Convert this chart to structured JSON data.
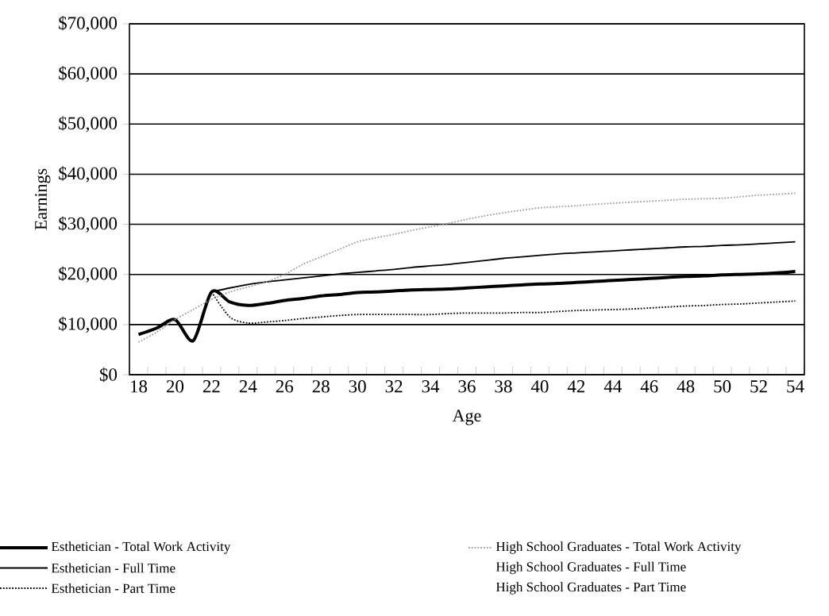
{
  "chart_data": {
    "type": "line",
    "xlabel": "Age",
    "ylabel": "Earnings",
    "categories": [
      "18",
      null,
      "20",
      null,
      "22",
      null,
      "24",
      null,
      "26",
      null,
      "28",
      null,
      "30",
      null,
      "32",
      null,
      "34",
      null,
      "36",
      null,
      "38",
      null,
      "40",
      null,
      "42",
      null,
      "44",
      null,
      "46",
      null,
      "48",
      null,
      "50",
      null,
      "52",
      null,
      "54"
    ],
    "series": [
      {
        "name": "Esthetician - Total Work Activity",
        "color": "#000000",
        "line_style": "solid",
        "values": [
          8000,
          9300,
          11000,
          6800,
          16500,
          14500,
          13800,
          14200,
          14800,
          15200,
          15700,
          16000,
          16400,
          16500,
          16700,
          16900,
          17000,
          17100,
          17300,
          17500,
          17700,
          17900,
          18100,
          18200,
          18400,
          18600,
          18800,
          19000,
          19200,
          19400,
          19600,
          19700,
          19900,
          20000,
          20100,
          20300,
          20600
        ]
      },
      {
        "name": "Esthetician - Full Time",
        "color": "#000000",
        "line_style": "solid",
        "values": [
          null,
          null,
          null,
          null,
          16500,
          17300,
          18000,
          18500,
          18900,
          19300,
          19700,
          20100,
          20400,
          20700,
          21000,
          21400,
          21700,
          22000,
          22400,
          22800,
          23200,
          23500,
          23800,
          24100,
          24300,
          24500,
          24700,
          24900,
          25100,
          25300,
          25500,
          25600,
          25800,
          25900,
          26100,
          26300,
          26500
        ]
      },
      {
        "name": "Esthetician - Part Time",
        "color": "#000000",
        "line_style": "dotted",
        "values": [
          null,
          null,
          null,
          null,
          16500,
          11500,
          10300,
          10500,
          10800,
          11200,
          11500,
          11800,
          12000,
          12000,
          12000,
          12000,
          12000,
          12200,
          12300,
          12300,
          12300,
          12400,
          12400,
          12600,
          12800,
          12900,
          13000,
          13100,
          13300,
          13500,
          13700,
          13800,
          14000,
          14100,
          14300,
          14500,
          14700
        ]
      },
      {
        "name": "High School Graduates - Total Work Activity",
        "color": "#a0a0a0",
        "line_style": "dotted",
        "values": [
          6500,
          8500,
          11000,
          13000,
          15000,
          16500,
          17500,
          18500,
          20000,
          22000,
          23500,
          25000,
          26500,
          27300,
          28000,
          28800,
          29500,
          30200,
          31000,
          31700,
          32300,
          32800,
          33300,
          33500,
          33700,
          34000,
          34200,
          34400,
          34600,
          34800,
          35000,
          35100,
          35200,
          35500,
          35800,
          36000,
          36200
        ]
      },
      {
        "name": "High School Graduates - Full Time",
        "values": [
          null,
          null,
          null,
          null,
          null,
          null,
          null,
          null,
          null,
          null,
          null,
          null,
          null,
          null,
          null,
          null,
          null,
          null,
          null,
          null,
          null,
          null,
          null,
          null,
          null,
          null,
          null,
          null,
          null,
          null,
          null,
          null,
          null,
          null,
          null,
          null,
          null
        ]
      },
      {
        "name": "High School Graduates - Part Time",
        "values": [
          null,
          null,
          null,
          null,
          null,
          null,
          null,
          null,
          null,
          null,
          null,
          null,
          null,
          null,
          null,
          null,
          null,
          null,
          null,
          null,
          null,
          null,
          null,
          null,
          null,
          null,
          null,
          null,
          null,
          null,
          null,
          null,
          null,
          null,
          null,
          null,
          null
        ]
      }
    ],
    "ylim": [
      0,
      70000
    ],
    "yticks": [
      {
        "value": 0,
        "label": "$0"
      },
      {
        "value": 10000,
        "label": "$10,000"
      },
      {
        "value": 20000,
        "label": "$20,000"
      },
      {
        "value": 30000,
        "label": "$30,000"
      },
      {
        "value": 40000,
        "label": "$40,000"
      },
      {
        "value": 50000,
        "label": "$50,000"
      },
      {
        "value": 60000,
        "label": "$60,000"
      },
      {
        "value": 70000,
        "label": "$70,000"
      }
    ],
    "grid": "y",
    "legend": "bottom",
    "marker": "none"
  }
}
